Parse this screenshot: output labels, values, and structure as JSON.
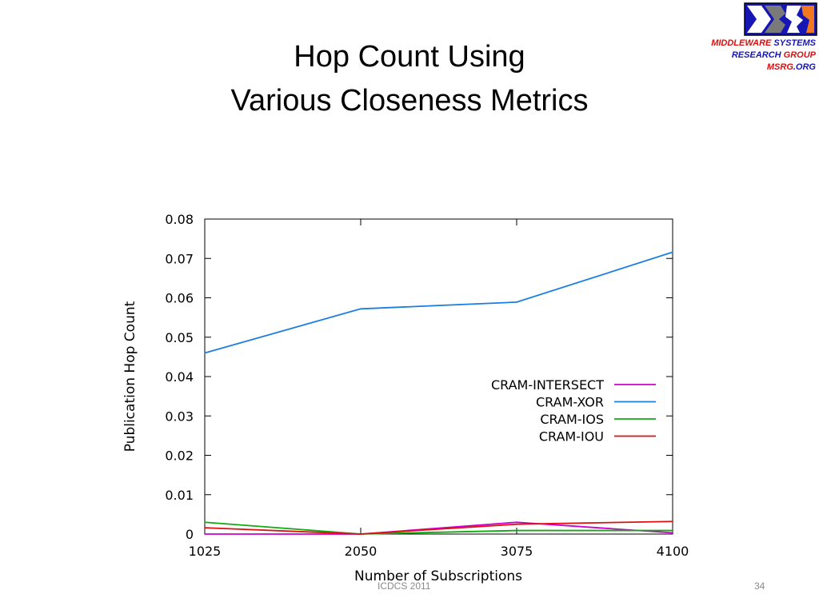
{
  "slide": {
    "title_line1": "Hop Count Using",
    "title_line2": "Various Closeness Metrics",
    "footer_left": "ICDCS 2011",
    "page_number": "34"
  },
  "logo": {
    "line1_a": "MIDDLEWARE",
    "line1_b": "SYSTEMS",
    "line2_a": "RESEARCH",
    "line2_b": "GROUP",
    "line3_a": "MSRG",
    "line3_b": ".ORG",
    "colors": {
      "red": "#d41212",
      "blue": "#1616b4",
      "orange": "#f07820"
    }
  },
  "chart_data": {
    "type": "line",
    "title": "",
    "xlabel": "Number of Subscriptions",
    "ylabel": "Publication Hop Count",
    "x": [
      1025,
      2050,
      3075,
      4100
    ],
    "xlim": [
      1025,
      4100
    ],
    "ylim": [
      0,
      0.08
    ],
    "xticks": [
      "1025",
      "2050",
      "3075",
      "4100"
    ],
    "yticks": [
      "0",
      "0.01",
      "0.02",
      "0.03",
      "0.04",
      "0.05",
      "0.06",
      "0.07",
      "0.08"
    ],
    "grid": false,
    "legend_position": "center-right",
    "series": [
      {
        "name": "CRAM-INTERSECT",
        "color": "#cc00cc",
        "values": [
          0.0,
          0.0,
          0.003,
          0.0003
        ]
      },
      {
        "name": "CRAM-XOR",
        "color": "#1a7fe0",
        "values": [
          0.046,
          0.0572,
          0.0589,
          0.0716
        ]
      },
      {
        "name": "CRAM-IOS",
        "color": "#13a813",
        "values": [
          0.003,
          0.0,
          0.0009,
          0.0009
        ]
      },
      {
        "name": "CRAM-IOU",
        "color": "#e01010",
        "values": [
          0.0016,
          0.0,
          0.0025,
          0.0032
        ]
      }
    ]
  }
}
